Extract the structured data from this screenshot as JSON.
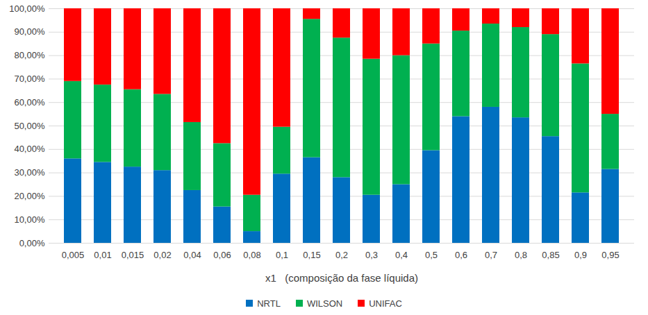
{
  "chart_data": {
    "type": "bar",
    "stacked": true,
    "grid": true,
    "legend": "bottom",
    "x_label": "x1   (composição da fase líquida)",
    "categories": [
      "0,005",
      "0,01",
      "0,015",
      "0,02",
      "0,04",
      "0,06",
      "0,08",
      "0,1",
      "0,15",
      "0,2",
      "0,3",
      "0,4",
      "0,5",
      "0,6",
      "0,7",
      "0,8",
      "0,85",
      "0,9",
      "0,95"
    ],
    "series": [
      {
        "name": "NRTL",
        "color": "#0070C0",
        "values": [
          36,
          34.5,
          32.5,
          31,
          22.5,
          15.5,
          5,
          29.5,
          36.5,
          28,
          20.5,
          25,
          39.5,
          54,
          58,
          53.5,
          45.5,
          21.5,
          31.5
        ]
      },
      {
        "name": "WILSON",
        "color": "#00B050",
        "values": [
          33,
          33,
          33,
          32.5,
          29,
          27,
          15.5,
          20,
          59,
          59.5,
          58,
          55,
          45.5,
          36.5,
          35.5,
          38.5,
          43.5,
          55,
          23.5
        ]
      },
      {
        "name": "UNIFAC",
        "color": "#FF0000",
        "values": [
          31,
          32.5,
          34.5,
          36.5,
          48.5,
          57.5,
          79.5,
          50.5,
          4.5,
          12.5,
          21.5,
          20,
          15,
          9.5,
          6.5,
          8,
          11,
          23.5,
          45
        ]
      }
    ],
    "ylim": [
      0,
      100
    ],
    "yticks": [
      {
        "value": 0,
        "label": "0,00%"
      },
      {
        "value": 10,
        "label": "10,00%"
      },
      {
        "value": 20,
        "label": "20,00%"
      },
      {
        "value": 30,
        "label": "30,00%"
      },
      {
        "value": 40,
        "label": "40,00%"
      },
      {
        "value": 50,
        "label": "50,00%"
      },
      {
        "value": 60,
        "label": "60,00%"
      },
      {
        "value": 70,
        "label": "70,00%"
      },
      {
        "value": 80,
        "label": "80,00%"
      },
      {
        "value": 90,
        "label": "90,00%"
      },
      {
        "value": 100,
        "label": "100,00%"
      }
    ]
  }
}
